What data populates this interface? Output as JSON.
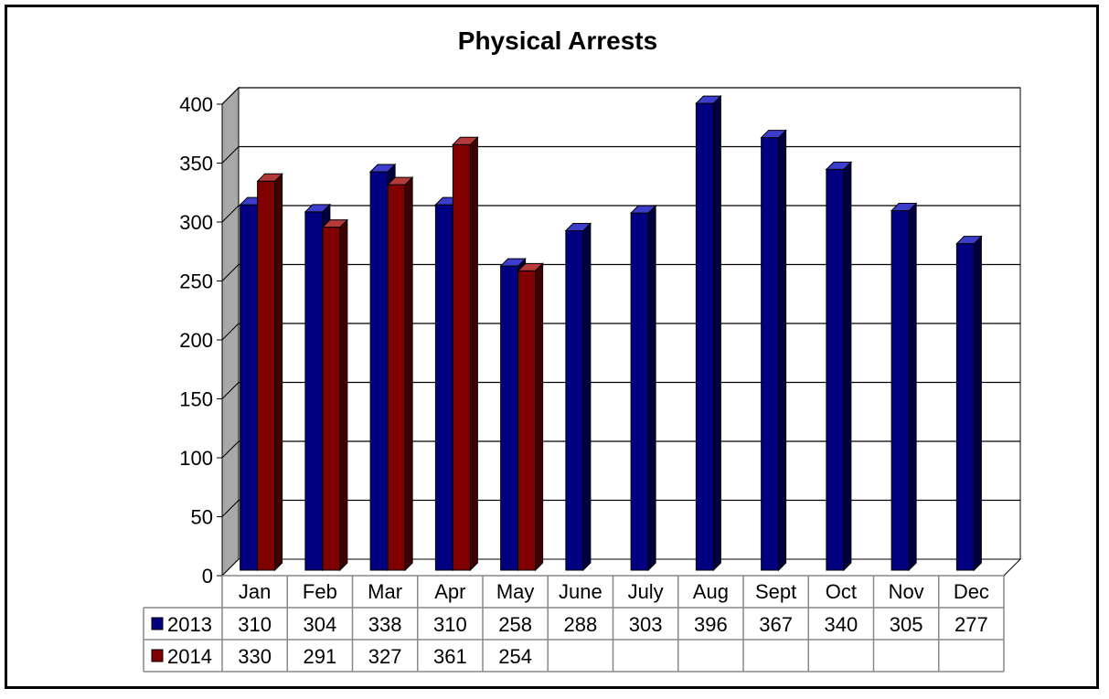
{
  "chart_data": {
    "type": "bar",
    "title": "Physical Arrests",
    "categories": [
      "Jan",
      "Feb",
      "Mar",
      "Apr",
      "May",
      "June",
      "July",
      "Aug",
      "Sept",
      "Oct",
      "Nov",
      "Dec"
    ],
    "series": [
      {
        "name": "2013",
        "values": [
          310,
          304,
          338,
          310,
          258,
          288,
          303,
          396,
          367,
          340,
          305,
          277
        ],
        "color": "#000080"
      },
      {
        "name": "2014",
        "values": [
          330,
          291,
          327,
          361,
          254,
          null,
          null,
          null,
          null,
          null,
          null,
          null
        ],
        "color": "#800000"
      }
    ],
    "ylim": [
      0,
      400
    ],
    "yticks": [
      0,
      50,
      100,
      150,
      200,
      250,
      300,
      350,
      400
    ],
    "grid": true,
    "data_table": true,
    "wall_color": "#a8a8a8",
    "side_shade": {
      "#000080": "#000040",
      "#800000": "#400000"
    },
    "top_shade": {
      "#000080": "#3d3dcc",
      "#800000": "#b53a3a"
    }
  }
}
